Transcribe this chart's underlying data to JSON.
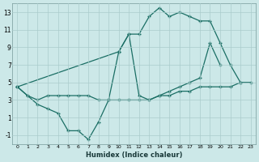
{
  "bg_color": "#cce8e8",
  "grid_color": "#aacccc",
  "line_color": "#1a6e64",
  "xlabel": "Humidex (Indice chaleur)",
  "yticks": [
    -1,
    1,
    3,
    5,
    7,
    9,
    11,
    13
  ],
  "xticks": [
    0,
    1,
    2,
    3,
    4,
    5,
    6,
    7,
    8,
    9,
    10,
    11,
    12,
    13,
    14,
    15,
    16,
    17,
    18,
    19,
    20,
    21,
    22,
    23
  ],
  "xlim": [
    -0.5,
    23.5
  ],
  "ylim": [
    -2.0,
    14.0
  ],
  "upper_x": [
    0,
    10,
    11,
    12,
    13,
    14,
    15,
    16,
    17,
    18,
    19,
    20,
    21,
    22
  ],
  "upper_y": [
    4.5,
    8.5,
    10.5,
    10.5,
    12.5,
    13.5,
    12.5,
    13.0,
    12.5,
    12.0,
    12.0,
    9.5,
    7.0,
    5.0
  ],
  "lower_x": [
    0,
    1,
    2,
    3,
    4,
    5,
    6,
    7,
    8,
    9,
    10,
    11,
    12,
    13,
    14,
    15,
    16,
    17,
    18,
    19,
    20,
    21,
    22
  ],
  "lower_y": [
    4.5,
    3.5,
    2.5,
    2.0,
    1.5,
    -0.5,
    -0.5,
    -1.5,
    0.5,
    3.0,
    8.5,
    10.5,
    3.5,
    3.0,
    3.5,
    4.0,
    4.5,
    5.0,
    5.5,
    9.5,
    7.0,
    null,
    null
  ],
  "diag_x": [
    0,
    1,
    2,
    3,
    4,
    5,
    6,
    7,
    8,
    9,
    10,
    11,
    12,
    13,
    14,
    15,
    16,
    17,
    18,
    19,
    20,
    21,
    22,
    23
  ],
  "diag_y": [
    4.5,
    3.5,
    3.0,
    3.5,
    3.5,
    3.5,
    3.5,
    3.5,
    3.0,
    3.0,
    3.0,
    3.0,
    3.0,
    3.0,
    3.5,
    3.5,
    4.0,
    4.0,
    4.5,
    4.5,
    4.5,
    4.5,
    5.0,
    5.0
  ]
}
